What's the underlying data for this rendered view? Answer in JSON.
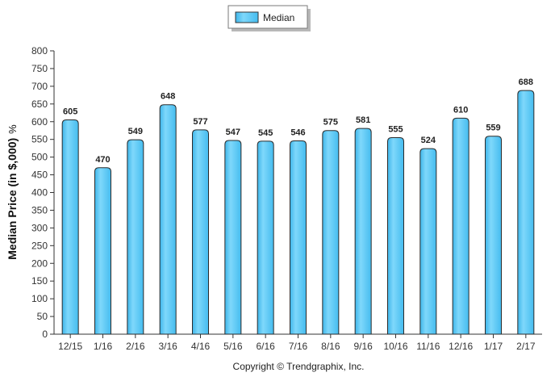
{
  "chart_data": {
    "type": "bar",
    "categories": [
      "12/15",
      "1/16",
      "2/16",
      "3/16",
      "4/16",
      "5/16",
      "6/16",
      "7/16",
      "8/16",
      "9/16",
      "10/16",
      "11/16",
      "12/16",
      "1/17",
      "2/17"
    ],
    "series": [
      {
        "name": "Median",
        "values": [
          605,
          470,
          549,
          648,
          577,
          547,
          545,
          546,
          575,
          581,
          555,
          524,
          610,
          559,
          688
        ],
        "color": "#5ecbf5"
      }
    ],
    "ylabel": "Median Price (in $,000)",
    "ylabel_suffix": "%",
    "ylim": [
      0,
      800
    ],
    "ytick_step": 50,
    "legend": {
      "label": "Median",
      "position": "top-center"
    },
    "grid": false,
    "data_labels": true
  },
  "footer": {
    "copyright": "Copyright © Trendgraphix, Inc."
  }
}
